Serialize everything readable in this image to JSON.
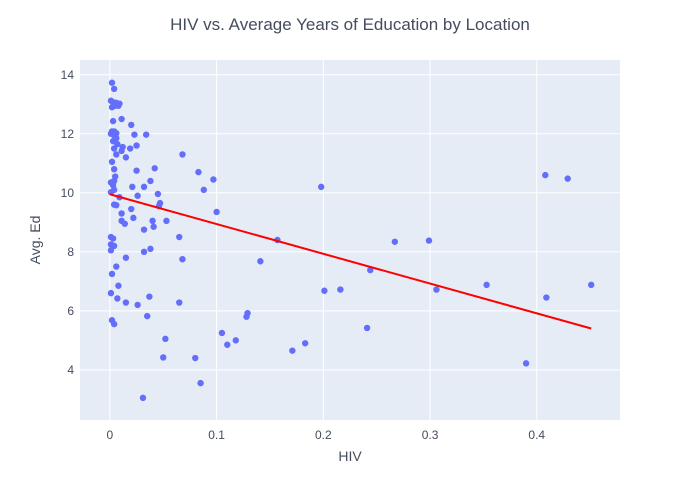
{
  "chart_data": {
    "type": "scatter",
    "title": "HIV vs. Average Years of Education by Location",
    "xlabel": "HIV",
    "ylabel": "Avg. Ed",
    "xlim": [
      -0.028,
      0.478
    ],
    "ylim": [
      2.3,
      14.5
    ],
    "x_ticks": [
      0,
      0.1,
      0.2,
      0.3,
      0.4
    ],
    "x_tick_labels": [
      "0",
      "0.1",
      "0.2",
      "0.3",
      "0.4"
    ],
    "y_ticks": [
      4,
      6,
      8,
      10,
      12,
      14
    ],
    "y_tick_labels": [
      "4",
      "6",
      "8",
      "10",
      "12",
      "14"
    ],
    "grid": true,
    "colors": {
      "plot_background": "#e5ecf6",
      "grid": "#ffffff",
      "points": "#636efa",
      "trendline": "#ff0000",
      "text": "#444c5e"
    },
    "series": [
      {
        "mode": "markers",
        "points": [
          [
            0.002,
            13.73
          ],
          [
            0.004,
            13.52
          ],
          [
            0.001,
            13.12
          ],
          [
            0.003,
            13.07
          ],
          [
            0.006,
            13.05
          ],
          [
            0.009,
            13.02
          ],
          [
            0.002,
            12.9
          ],
          [
            0.005,
            12.95
          ],
          [
            0.008,
            12.95
          ],
          [
            0.011,
            12.5
          ],
          [
            0.003,
            12.43
          ],
          [
            0.02,
            12.3
          ],
          [
            0.002,
            12.08
          ],
          [
            0.004,
            12.08
          ],
          [
            0.006,
            12.02
          ],
          [
            0.001,
            12.0
          ],
          [
            0.004,
            11.95
          ],
          [
            0.023,
            11.97
          ],
          [
            0.034,
            11.97
          ],
          [
            0.006,
            11.85
          ],
          [
            0.003,
            11.75
          ],
          [
            0.005,
            11.8
          ],
          [
            0.007,
            11.65
          ],
          [
            0.025,
            11.6
          ],
          [
            0.004,
            11.5
          ],
          [
            0.012,
            11.55
          ],
          [
            0.019,
            11.5
          ],
          [
            0.011,
            11.42
          ],
          [
            0.006,
            11.3
          ],
          [
            0.015,
            11.2
          ],
          [
            0.068,
            11.3
          ],
          [
            0.002,
            11.05
          ],
          [
            0.042,
            10.83
          ],
          [
            0.004,
            10.8
          ],
          [
            0.025,
            10.75
          ],
          [
            0.083,
            10.7
          ],
          [
            0.005,
            10.55
          ],
          [
            0.004,
            10.4
          ],
          [
            0.038,
            10.4
          ],
          [
            0.097,
            10.45
          ],
          [
            0.001,
            10.35
          ],
          [
            0.003,
            10.25
          ],
          [
            0.021,
            10.2
          ],
          [
            0.032,
            10.2
          ],
          [
            0.198,
            10.2
          ],
          [
            0.004,
            10.1
          ],
          [
            0.088,
            10.1
          ],
          [
            0.001,
            10.02
          ],
          [
            0.045,
            9.96
          ],
          [
            0.009,
            9.85
          ],
          [
            0.026,
            9.9
          ],
          [
            0.047,
            9.65
          ],
          [
            0.004,
            9.6
          ],
          [
            0.006,
            9.58
          ],
          [
            0.046,
            9.55
          ],
          [
            0.02,
            9.45
          ],
          [
            0.1,
            9.35
          ],
          [
            0.011,
            9.3
          ],
          [
            0.022,
            9.15
          ],
          [
            0.011,
            9.05
          ],
          [
            0.04,
            9.05
          ],
          [
            0.053,
            9.05
          ],
          [
            0.014,
            8.95
          ],
          [
            0.041,
            8.85
          ],
          [
            0.032,
            8.75
          ],
          [
            0.065,
            8.5
          ],
          [
            0.001,
            8.5
          ],
          [
            0.003,
            8.45
          ],
          [
            0.157,
            8.4
          ],
          [
            0.299,
            8.38
          ],
          [
            0.267,
            8.34
          ],
          [
            0.001,
            8.25
          ],
          [
            0.004,
            8.2
          ],
          [
            0.038,
            8.1
          ],
          [
            0.001,
            8.05
          ],
          [
            0.032,
            8.0
          ],
          [
            0.015,
            7.8
          ],
          [
            0.068,
            7.75
          ],
          [
            0.141,
            7.68
          ],
          [
            0.006,
            7.5
          ],
          [
            0.244,
            7.38
          ],
          [
            0.002,
            7.25
          ],
          [
            0.008,
            6.85
          ],
          [
            0.353,
            6.88
          ],
          [
            0.451,
            6.88
          ],
          [
            0.216,
            6.72
          ],
          [
            0.306,
            6.72
          ],
          [
            0.201,
            6.68
          ],
          [
            0.001,
            6.6
          ],
          [
            0.037,
            6.48
          ],
          [
            0.409,
            6.45
          ],
          [
            0.007,
            6.42
          ],
          [
            0.015,
            6.28
          ],
          [
            0.065,
            6.28
          ],
          [
            0.026,
            6.2
          ],
          [
            0.129,
            5.92
          ],
          [
            0.035,
            5.82
          ],
          [
            0.128,
            5.8
          ],
          [
            0.002,
            5.68
          ],
          [
            0.004,
            5.55
          ],
          [
            0.241,
            5.42
          ],
          [
            0.105,
            5.25
          ],
          [
            0.052,
            5.05
          ],
          [
            0.118,
            5.0
          ],
          [
            0.183,
            4.9
          ],
          [
            0.11,
            4.85
          ],
          [
            0.171,
            4.65
          ],
          [
            0.05,
            4.42
          ],
          [
            0.08,
            4.4
          ],
          [
            0.39,
            4.22
          ],
          [
            0.085,
            3.55
          ],
          [
            0.031,
            3.05
          ],
          [
            0.408,
            10.6
          ],
          [
            0.429,
            10.48
          ]
        ]
      },
      {
        "mode": "lines",
        "points": [
          [
            0.0,
            9.95
          ],
          [
            0.451,
            5.4
          ]
        ]
      }
    ]
  }
}
